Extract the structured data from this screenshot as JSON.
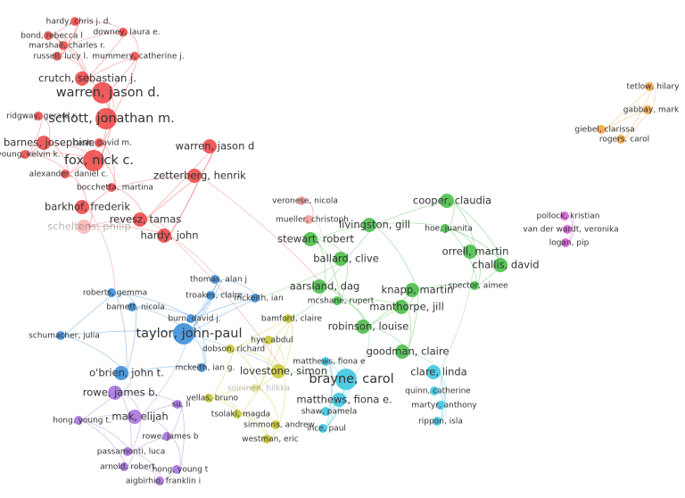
{
  "clusters": [
    {
      "color": "#ee4b4b",
      "nodes": [
        "hardy, chris j. d.",
        "downey, laura e.",
        "bond, rebecca l",
        "marshall, charles r.",
        "russell, lucy l.",
        "mummery, catherine j.",
        "crutch, sebastian j.",
        "warren, jason d.",
        "ridgway, gerard r.",
        "schott, jonathan m.",
        "cash, david m.",
        "barnes, josephine",
        "young, kelvin k.",
        "alexander, daniel c.",
        "fox, nick c.",
        "warren, jason d",
        "zetterberg, henrik",
        "bocchetta, martina",
        "barkhof, frederik",
        "revesz, tamas",
        "hardy, john",
        "scheltens, philip"
      ]
    },
    {
      "color": "#4cbf4c",
      "nodes": [
        "cooper, claudia",
        "livingston, gill",
        "stewart, robert",
        "ballard, clive",
        "orrell, martin",
        "hoe, juanita",
        "challis, david",
        "knapp, martin",
        "spector, aimee",
        "aarsland, dag",
        "manthorpe, jill",
        "mcshane, rupert",
        "robinson, louise",
        "goodman, claire"
      ]
    },
    {
      "color": "#f39a9a",
      "nodes": [
        "veronese, nicola",
        "mueller, christoph"
      ]
    },
    {
      "color": "#d65fd6",
      "nodes": [
        "pollock, kristian",
        "van der wardt, veronika",
        "logan, pip"
      ]
    },
    {
      "color": "#f5a545",
      "nodes": [
        "tetlow, hilary",
        "gabbay, mark",
        "giebel, clarissa",
        "rogers, carol"
      ]
    },
    {
      "color": "#3d8fd8",
      "nodes": [
        "thomas, alan j",
        "roberts, gemma",
        "troakes, claire",
        "mckeith, ian",
        "barnett, nicola",
        "burn, david j.",
        "schumacher, julia",
        "taylor, john-paul",
        "o'brien, john t.",
        "mckeith, ian g."
      ]
    },
    {
      "color": "#c9c935",
      "nodes": [
        "bamford, claire",
        "hye, abdul",
        "dobson, richard",
        "lovestone, simon",
        "vellas, bruno",
        "soininen, hilkka",
        "tsolaki, magda",
        "simmons, andrew",
        "westman, eric"
      ]
    },
    {
      "color": "#3ec6e0",
      "nodes": [
        "matthews, fiona e",
        "brayne, carol",
        "clare, linda",
        "quinn, catherine",
        "matthews, fiona e.",
        "martyr, anthony",
        "shaw, pamela",
        "rippon, isla",
        "ince, paul"
      ]
    },
    {
      "color": "#a874dc",
      "nodes": [
        "rowe, james b.",
        "su, li",
        "hong, young t.",
        "mak, elijah",
        "rowe, james b",
        "passamonti, luca",
        "arnold, robert",
        "hong, young t",
        "aigbirhio, franklin i"
      ]
    }
  ]
}
